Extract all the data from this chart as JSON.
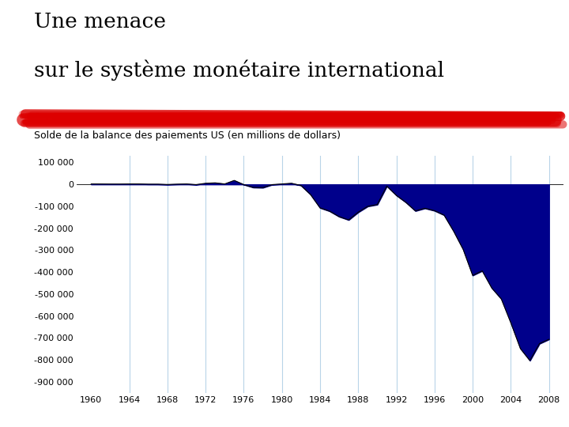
{
  "title_line1": "Une menace",
  "title_line2": "sur le système monétaire international",
  "subtitle": "Solde de la balance des paiements US (en millions de dollars)",
  "bg_color": "#ffffff",
  "fill_color": "#00008B",
  "line_color": "#000000",
  "grid_color": "#b8d4e8",
  "red_color": "#dd0000",
  "years": [
    1960,
    1961,
    1962,
    1963,
    1964,
    1965,
    1966,
    1967,
    1968,
    1969,
    1970,
    1971,
    1972,
    1973,
    1974,
    1975,
    1976,
    1977,
    1978,
    1979,
    1980,
    1981,
    1982,
    1983,
    1984,
    1985,
    1986,
    1987,
    1988,
    1989,
    1990,
    1991,
    1992,
    1993,
    1994,
    1995,
    1996,
    1997,
    1998,
    1999,
    2000,
    2001,
    2002,
    2003,
    2004,
    2005,
    2006,
    2007,
    2008
  ],
  "values": [
    2000,
    1800,
    1500,
    1500,
    2000,
    2000,
    1000,
    1000,
    -500,
    1000,
    2000,
    -1000,
    5000,
    7000,
    2000,
    18000,
    -1000,
    -14000,
    -15000,
    -1000,
    2000,
    5000,
    -5000,
    -46000,
    -107000,
    -122000,
    -147000,
    -162000,
    -127000,
    -100000,
    -92000,
    -8000,
    -50000,
    -82000,
    -121000,
    -109000,
    -120000,
    -140000,
    -213000,
    -296000,
    -415000,
    -394000,
    -472000,
    -522000,
    -631000,
    -748000,
    -803000,
    -726000,
    -706000
  ],
  "ylim": [
    -950000,
    130000
  ],
  "yticks": [
    100000,
    0,
    -100000,
    -200000,
    -300000,
    -400000,
    -500000,
    -600000,
    -700000,
    -800000,
    -900000
  ],
  "ytick_labels": [
    "100 000",
    "0",
    "-100 000",
    "-200 000",
    "-300 000",
    "-400 000",
    "-500 000",
    "-600 000",
    "-700 000",
    "-800 000",
    "-900 000"
  ],
  "xtick_years": [
    1960,
    1964,
    1968,
    1972,
    1976,
    1980,
    1984,
    1988,
    1992,
    1996,
    2000,
    2004,
    2008
  ],
  "grid_years": [
    1964,
    1968,
    1972,
    1976,
    1980,
    1984,
    1988,
    1992,
    1996,
    2000,
    2004,
    2008
  ],
  "title_fontsize": 19,
  "subtitle_fontsize": 9
}
